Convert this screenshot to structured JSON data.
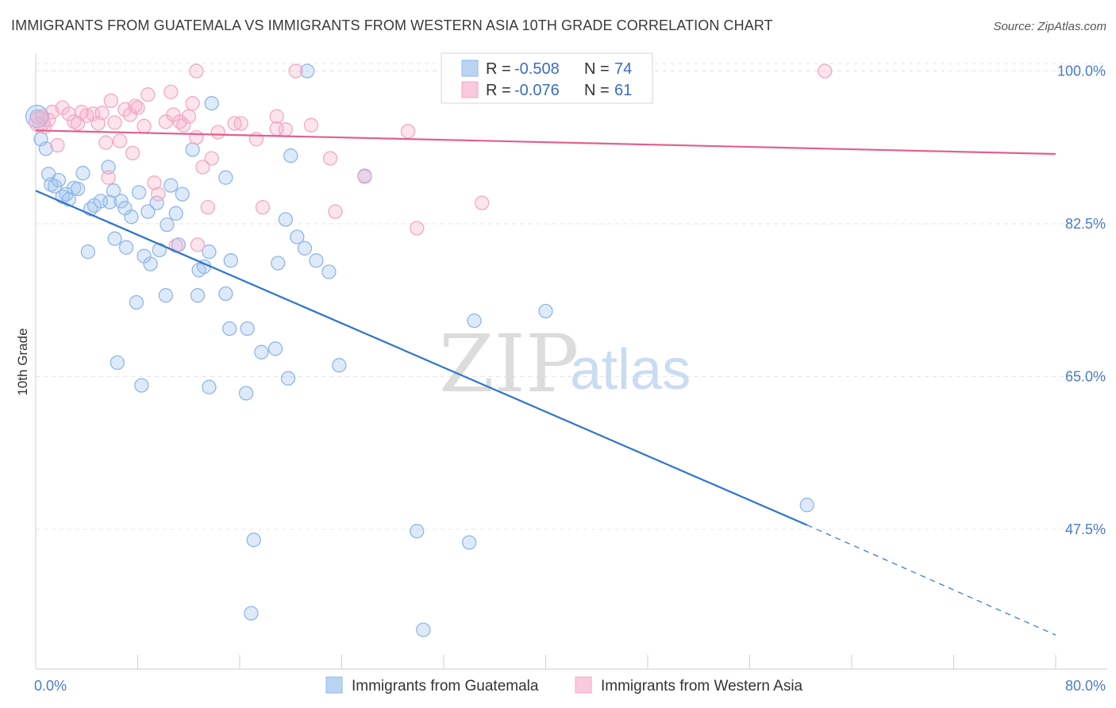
{
  "title": "IMMIGRANTS FROM GUATEMALA VS IMMIGRANTS FROM WESTERN ASIA 10TH GRADE CORRELATION CHART",
  "source": "Source: ZipAtlas.com",
  "watermark": {
    "zip": "ZIP",
    "atlas": "atlas"
  },
  "legend": {
    "r_label": "R =",
    "n_label": "N =",
    "items": [
      {
        "r": "-0.508",
        "n": "74"
      },
      {
        "r": "-0.076",
        "n": "61"
      }
    ]
  },
  "chart_data": {
    "type": "scatter",
    "title": "IMMIGRANTS FROM GUATEMALA VS IMMIGRANTS FROM WESTERN ASIA 10TH GRADE CORRELATION CHART",
    "xlabel": "",
    "ylabel": "10th Grade",
    "xlim": [
      0,
      80
    ],
    "ylim": [
      31.5,
      102.5
    ],
    "x_tick_labels": [
      "0.0%",
      "80.0%"
    ],
    "y_tick_labels": [
      "100.0%",
      "82.5%",
      "65.0%",
      "47.5%"
    ],
    "y_ticks": [
      100,
      82.5,
      65,
      47.5
    ],
    "grid": true,
    "legend_placement": "top-center",
    "series": [
      {
        "name": "Immigrants from Guatemala",
        "color": "#8fb8ea",
        "line_color": "#2e74d0",
        "r": -0.508,
        "n": 74,
        "trend": {
          "x0": 0,
          "y0": 86.3,
          "x1": 60.5,
          "y1": 48.0,
          "x_dash_end": 80,
          "y_dash_end": 35.4
        },
        "points": [
          [
            0.1,
            94.8
          ],
          [
            0.4,
            92.2
          ],
          [
            0.8,
            91.1
          ],
          [
            1.0,
            88.2
          ],
          [
            1.2,
            87.0
          ],
          [
            1.5,
            86.8
          ],
          [
            1.8,
            87.5
          ],
          [
            2.1,
            85.6
          ],
          [
            2.4,
            85.9
          ],
          [
            2.6,
            85.3
          ],
          [
            3.0,
            86.6
          ],
          [
            3.7,
            88.3
          ],
          [
            4.3,
            84.2
          ],
          [
            4.6,
            84.6
          ],
          [
            5.1,
            85.1
          ],
          [
            5.7,
            89.0
          ],
          [
            5.8,
            85.0
          ],
          [
            6.1,
            86.3
          ],
          [
            6.7,
            85.1
          ],
          [
            7.5,
            83.3
          ],
          [
            8.1,
            86.1
          ],
          [
            8.8,
            83.9
          ],
          [
            9.5,
            84.9
          ],
          [
            10.3,
            82.4
          ],
          [
            10.6,
            86.9
          ],
          [
            11.0,
            83.7
          ],
          [
            11.5,
            85.9
          ],
          [
            12.3,
            91.0
          ],
          [
            13.8,
            96.3
          ],
          [
            14.9,
            87.8
          ],
          [
            4.1,
            79.3
          ],
          [
            6.2,
            80.8
          ],
          [
            7.1,
            79.8
          ],
          [
            8.5,
            78.8
          ],
          [
            9.0,
            77.9
          ],
          [
            9.7,
            79.5
          ],
          [
            11.2,
            80.1
          ],
          [
            12.8,
            77.2
          ],
          [
            13.6,
            79.3
          ],
          [
            15.3,
            78.3
          ],
          [
            19.6,
            83.0
          ],
          [
            20.5,
            81.0
          ],
          [
            21.1,
            79.7
          ],
          [
            22.0,
            78.3
          ],
          [
            23.0,
            77.0
          ],
          [
            19.0,
            78.0
          ],
          [
            7.9,
            73.5
          ],
          [
            10.2,
            74.3
          ],
          [
            12.7,
            74.3
          ],
          [
            14.9,
            74.5
          ],
          [
            15.2,
            70.5
          ],
          [
            16.6,
            70.5
          ],
          [
            17.7,
            67.8
          ],
          [
            18.8,
            68.2
          ],
          [
            23.8,
            66.3
          ],
          [
            6.4,
            66.6
          ],
          [
            8.3,
            64.0
          ],
          [
            13.6,
            63.8
          ],
          [
            16.5,
            63.1
          ],
          [
            19.8,
            64.8
          ],
          [
            34.4,
            71.4
          ],
          [
            40.0,
            72.5
          ],
          [
            60.5,
            50.3
          ],
          [
            17.1,
            46.3
          ],
          [
            29.9,
            47.3
          ],
          [
            34.0,
            46.0
          ],
          [
            16.9,
            37.9
          ],
          [
            30.4,
            36.0
          ],
          [
            20.0,
            90.3
          ],
          [
            21.3,
            100.0
          ],
          [
            25.8,
            88.0
          ],
          [
            13.2,
            77.6
          ],
          [
            3.3,
            86.5
          ],
          [
            7.0,
            84.3
          ]
        ]
      },
      {
        "name": "Immigrants from Western Asia",
        "color": "#f3a9c4",
        "line_color": "#e0608e",
        "r": -0.076,
        "n": 61,
        "trend": {
          "x0": 0,
          "y0": 93.2,
          "x1": 80,
          "y1": 90.5
        },
        "points": [
          [
            0.3,
            94.0
          ],
          [
            0.7,
            93.6
          ],
          [
            1.0,
            94.4
          ],
          [
            1.3,
            95.3
          ],
          [
            1.7,
            91.5
          ],
          [
            2.1,
            95.8
          ],
          [
            2.6,
            95.1
          ],
          [
            3.0,
            94.2
          ],
          [
            3.3,
            94.0
          ],
          [
            3.6,
            95.3
          ],
          [
            4.0,
            94.9
          ],
          [
            4.5,
            95.1
          ],
          [
            4.9,
            94.0
          ],
          [
            5.2,
            95.2
          ],
          [
            5.5,
            91.8
          ],
          [
            5.9,
            96.6
          ],
          [
            6.2,
            94.1
          ],
          [
            6.6,
            92.0
          ],
          [
            7.0,
            95.6
          ],
          [
            7.4,
            95.0
          ],
          [
            7.8,
            96.0
          ],
          [
            8.0,
            95.8
          ],
          [
            8.5,
            93.7
          ],
          [
            8.8,
            97.3
          ],
          [
            9.3,
            87.2
          ],
          [
            9.6,
            85.9
          ],
          [
            10.2,
            94.2
          ],
          [
            10.6,
            97.6
          ],
          [
            10.8,
            95.0
          ],
          [
            11.3,
            94.2
          ],
          [
            11.6,
            93.8
          ],
          [
            12.0,
            94.8
          ],
          [
            12.3,
            96.3
          ],
          [
            12.6,
            92.4
          ],
          [
            13.1,
            89.0
          ],
          [
            13.8,
            90.0
          ],
          [
            14.3,
            93.0
          ],
          [
            15.6,
            94.0
          ],
          [
            16.1,
            94.0
          ],
          [
            17.3,
            92.2
          ],
          [
            18.9,
            93.4
          ],
          [
            18.9,
            94.8
          ],
          [
            19.6,
            93.3
          ],
          [
            21.6,
            93.8
          ],
          [
            23.1,
            90.0
          ],
          [
            23.5,
            83.9
          ],
          [
            25.8,
            87.9
          ],
          [
            29.2,
            93.1
          ],
          [
            29.9,
            82.0
          ],
          [
            35.0,
            84.9
          ],
          [
            12.7,
            80.1
          ],
          [
            13.5,
            84.4
          ],
          [
            17.8,
            84.4
          ],
          [
            7.6,
            90.6
          ],
          [
            11.0,
            80.0
          ],
          [
            12.6,
            100.0
          ],
          [
            20.4,
            100.0
          ],
          [
            42.5,
            100.0
          ],
          [
            61.9,
            100.0
          ],
          [
            5.7,
            87.8
          ],
          [
            0.5,
            94.8
          ]
        ]
      }
    ]
  }
}
